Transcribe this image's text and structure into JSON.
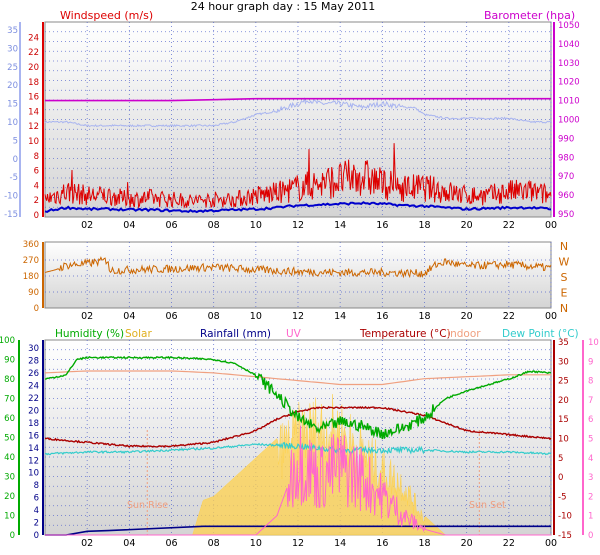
{
  "title": "24 hour graph day : 15 May 2011",
  "colors": {
    "windspeed": "#dd0000",
    "barometer": "#cc00cc",
    "gust_avg_light": "#a8b4f0",
    "wind_avg": "#0000cc",
    "direction": "#cc6600",
    "humidity": "#00aa00",
    "solar": "#ffd24d",
    "rainfall": "#000088",
    "uv": "#ff66cc",
    "temperature": "#aa0000",
    "indoor": "#f0a080",
    "dew_point": "#33cccc",
    "panel_top": "#ffffff",
    "panel_bottom": "#d6d6d6"
  },
  "chart_data": [
    {
      "type": "line",
      "panel": "wind-barometer",
      "labels": {
        "left": "Windspeed (m/s)",
        "right": "Barometer (hpa)"
      },
      "x_ticks": [
        "02",
        "04",
        "06",
        "08",
        "10",
        "12",
        "14",
        "16",
        "18",
        "20",
        "22",
        "00"
      ],
      "y_left_outer": {
        "ticks": [
          -15,
          -10,
          -5,
          0,
          5,
          10,
          15,
          20,
          25,
          30,
          35
        ]
      },
      "y_left_inner": {
        "ticks": [
          0,
          2,
          4,
          6,
          8,
          10,
          12,
          14,
          16,
          18,
          20,
          22,
          24
        ],
        "ylim": [
          0,
          25
        ]
      },
      "y_right": {
        "ticks": [
          950,
          960,
          970,
          980,
          990,
          1000,
          1010,
          1020,
          1030,
          1040,
          1050
        ],
        "ylim": [
          950,
          1050
        ]
      },
      "series": [
        {
          "name": "Barometer",
          "axis": "right",
          "x": [
            0,
            2,
            4,
            6,
            8,
            10,
            12,
            14,
            16,
            18,
            20,
            22,
            24
          ],
          "values": [
            1010,
            1010,
            1010,
            1010,
            1010.5,
            1011,
            1011,
            1011,
            1011,
            1011,
            1011,
            1011,
            1011
          ]
        },
        {
          "axis": "left_outer",
          "x": [
            0,
            1,
            2,
            3,
            4,
            5,
            6,
            7,
            8,
            9,
            10,
            11,
            11.5,
            12,
            12.5,
            13,
            14,
            15,
            16,
            17,
            17.5,
            18,
            19,
            20,
            21,
            22,
            23,
            24
          ],
          "values": [
            10,
            10,
            9,
            9,
            9,
            9,
            9,
            9,
            9,
            10,
            12,
            13,
            14,
            15,
            16,
            15,
            15,
            14,
            15,
            14,
            14,
            12,
            11,
            11,
            11,
            11,
            10,
            10
          ]
        },
        {
          "name": "Windspeed",
          "axis": "left_inner",
          "x": [
            0,
            1,
            2,
            3,
            4,
            5,
            6,
            7,
            8,
            9,
            10,
            11,
            12,
            13,
            14,
            15,
            16,
            17,
            18,
            19,
            20,
            21,
            22,
            23,
            24
          ],
          "values": [
            2,
            3,
            2.5,
            2.5,
            2,
            2.2,
            2,
            1.8,
            2,
            2,
            2.5,
            2.8,
            3.5,
            4,
            4.5,
            5,
            4,
            3.5,
            3.5,
            3,
            2.5,
            2.5,
            3,
            3,
            2.5
          ]
        },
        {
          "axis": "left_inner",
          "x": [
            0,
            1,
            2,
            3,
            4,
            5,
            6,
            7,
            8,
            9,
            10,
            11,
            12,
            13,
            14,
            15,
            16,
            17,
            18,
            19,
            20,
            21,
            22,
            23,
            24
          ],
          "values": [
            0.5,
            1,
            0.8,
            0.8,
            0.7,
            0.7,
            0.6,
            0.5,
            0.6,
            0.7,
            0.8,
            1,
            1.3,
            1.4,
            1.5,
            1.6,
            1.5,
            1.3,
            1.2,
            1,
            0.8,
            0.9,
            1,
            1,
            0.8
          ]
        }
      ]
    },
    {
      "type": "line",
      "panel": "wind-direction",
      "x_ticks": [
        "02",
        "04",
        "06",
        "08",
        "10",
        "12",
        "14",
        "16",
        "18",
        "20",
        "22",
        "00"
      ],
      "y_left": {
        "ticks": [
          0,
          90,
          180,
          270,
          360
        ],
        "ylim": [
          0,
          360
        ]
      },
      "y_right": {
        "ticks": [
          "N",
          "W",
          "S",
          "E",
          "N"
        ]
      },
      "series": [
        {
          "name": "Direction",
          "x": [
            0,
            0.5,
            1,
            2,
            3,
            3.01,
            4,
            6,
            8,
            10,
            12,
            14,
            16,
            18,
            18.5,
            19,
            20,
            22,
            24
          ],
          "values": [
            200,
            215,
            240,
            250,
            270,
            210,
            215,
            220,
            230,
            215,
            205,
            200,
            200,
            195,
            240,
            260,
            235,
            245,
            225
          ]
        }
      ]
    },
    {
      "type": "line",
      "panel": "humidity-temperature",
      "legend": [
        "Humidity (%)",
        "Solar",
        "Rainfall (mm)",
        "UV",
        "Temperature (°C)",
        "Indoor",
        "Dew Point (°C)"
      ],
      "x_ticks": [
        "02",
        "04",
        "06",
        "08",
        "10",
        "12",
        "14",
        "16",
        "18",
        "20",
        "22",
        "00"
      ],
      "y_humidity": {
        "ticks": [
          0,
          10,
          20,
          30,
          40,
          50,
          60,
          70,
          80,
          90,
          100
        ],
        "ylim": [
          0,
          100
        ]
      },
      "y_rainfall": {
        "ticks": [
          0,
          2,
          4,
          6,
          8,
          10,
          12,
          14,
          16,
          18,
          20,
          22,
          24,
          26,
          28,
          30
        ],
        "ylim": [
          0,
          31
        ]
      },
      "y_temperature": {
        "ticks": [
          -15,
          -10,
          -5,
          0,
          5,
          10,
          15,
          20,
          25,
          30,
          35
        ],
        "ylim": [
          -15,
          35
        ]
      },
      "y_uv": {
        "ticks": [
          0,
          1,
          2,
          3,
          4,
          5,
          6,
          7,
          8,
          9,
          10
        ],
        "ylim": [
          0,
          10
        ]
      },
      "annotations": [
        "Sun Rise",
        "Sun Set"
      ],
      "series": [
        {
          "name": "Humidity",
          "axis": "humidity",
          "x": [
            0,
            1,
            1.5,
            2,
            4,
            6,
            8,
            9,
            10,
            11,
            12,
            13,
            14,
            15,
            16,
            17,
            18,
            19,
            20,
            21,
            22,
            23,
            24
          ],
          "values": [
            80,
            82,
            90,
            91,
            91,
            91,
            90,
            88,
            82,
            72,
            60,
            54,
            58,
            56,
            52,
            55,
            60,
            70,
            74,
            77,
            80,
            84,
            83
          ]
        },
        {
          "name": "Solar",
          "axis": "uv",
          "x": [
            0,
            7,
            7.5,
            8,
            9,
            10,
            11,
            12,
            13,
            14,
            15,
            16,
            17,
            18,
            19,
            24
          ],
          "values": [
            0,
            0,
            1.8,
            2,
            3,
            4,
            5,
            6,
            6.5,
            6.3,
            5,
            4,
            3,
            1,
            0,
            0
          ]
        },
        {
          "name": "Rainfall",
          "axis": "rainfall",
          "x": [
            0,
            1,
            2,
            3,
            7.5,
            24
          ],
          "values": [
            0,
            0,
            0.6,
            0.7,
            1.4,
            1.4
          ]
        },
        {
          "name": "UV",
          "axis": "uv",
          "x": [
            0,
            10,
            11,
            12,
            13,
            14,
            15,
            16,
            17,
            18,
            19,
            24
          ],
          "values": [
            0,
            0,
            1,
            4,
            3,
            3.5,
            3,
            2,
            1,
            0.3,
            0,
            0
          ]
        },
        {
          "name": "Temperature",
          "axis": "temperature",
          "x": [
            0,
            2,
            4,
            6,
            8,
            10,
            11,
            12,
            13,
            14,
            15,
            16,
            17,
            18,
            19,
            20,
            22,
            24
          ],
          "values": [
            10,
            9,
            8,
            8,
            9,
            12,
            15,
            17,
            18,
            18,
            18,
            18,
            17,
            16,
            14,
            12,
            11,
            10
          ]
        },
        {
          "name": "Indoor",
          "axis": "temperature",
          "x": [
            0,
            2,
            4,
            6,
            8,
            10,
            12,
            14,
            16,
            18,
            20,
            22,
            24
          ],
          "values": [
            27,
            27.5,
            27.5,
            27.5,
            27,
            26,
            25,
            24,
            24,
            25.5,
            26,
            26.5,
            26.5
          ]
        },
        {
          "name": "Dew Point",
          "axis": "temperature",
          "x": [
            0,
            2,
            4,
            6,
            8,
            10,
            12,
            14,
            16,
            18,
            20,
            22,
            24
          ],
          "values": [
            6,
            6.5,
            6.5,
            7,
            7.5,
            8.5,
            8,
            7,
            7,
            7,
            6.5,
            6.5,
            6
          ]
        }
      ]
    }
  ]
}
